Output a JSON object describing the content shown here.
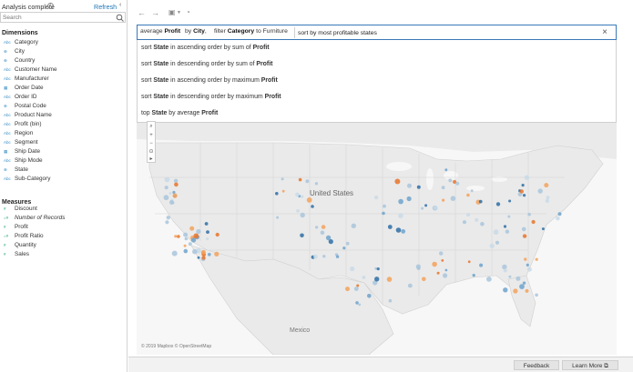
{
  "pane": {
    "status": "Analysis complete",
    "refresh": "Refresh",
    "search_placeholder": "Search",
    "dimensions_title": "Dimensions",
    "measures_title": "Measures",
    "dimensions": [
      {
        "label": "Category",
        "type": "Abc"
      },
      {
        "label": "City",
        "type": "geo"
      },
      {
        "label": "Country",
        "type": "geo"
      },
      {
        "label": "Customer Name",
        "type": "Abc"
      },
      {
        "label": "Manufacturer",
        "type": "Abc"
      },
      {
        "label": "Order Date",
        "type": "date"
      },
      {
        "label": "Order ID",
        "type": "Abc"
      },
      {
        "label": "Postal Code",
        "type": "geo"
      },
      {
        "label": "Product Name",
        "type": "Abc"
      },
      {
        "label": "Profit (bin)",
        "type": "Abc"
      },
      {
        "label": "Region",
        "type": "Abc"
      },
      {
        "label": "Segment",
        "type": "Abc"
      },
      {
        "label": "Ship Date",
        "type": "date"
      },
      {
        "label": "Ship Mode",
        "type": "Abc"
      },
      {
        "label": "State",
        "type": "geo"
      },
      {
        "label": "Sub-Category",
        "type": "Abc"
      }
    ],
    "measures": [
      {
        "label": "Discount",
        "type": "#"
      },
      {
        "label": "Number of Records",
        "type": "=#",
        "italic": true
      },
      {
        "label": "Profit",
        "type": "#"
      },
      {
        "label": "Profit Ratio",
        "type": "=#"
      },
      {
        "label": "Quantity",
        "type": "#"
      },
      {
        "label": "Sales",
        "type": "#"
      }
    ]
  },
  "query": {
    "pill1": {
      "prefix": "average",
      "bold": "Profit"
    },
    "pill2": {
      "prefix": "by",
      "bold": "City"
    },
    "pill3": {
      "prefix": "filter",
      "bold": "Category",
      "suffix": "to Furniture"
    },
    "input_value": "sort by most profitable states"
  },
  "suggestions": [
    {
      "parts": [
        [
          "sort ",
          false
        ],
        [
          "State",
          true
        ],
        [
          " in ascending order by sum of ",
          false
        ],
        [
          "Profit",
          true
        ]
      ]
    },
    {
      "parts": [
        [
          "sort ",
          false
        ],
        [
          "State",
          true
        ],
        [
          " in descending order by sum of ",
          false
        ],
        [
          "Profit",
          true
        ]
      ]
    },
    {
      "parts": [
        [
          "sort ",
          false
        ],
        [
          "State",
          true
        ],
        [
          " in ascending order by maximum ",
          false
        ],
        [
          "Profit",
          true
        ]
      ]
    },
    {
      "parts": [
        [
          "sort ",
          false
        ],
        [
          "State",
          true
        ],
        [
          " in descending order by maximum ",
          false
        ],
        [
          "Profit",
          true
        ]
      ]
    },
    {
      "parts": [
        [
          "top ",
          false
        ],
        [
          "State",
          true
        ],
        [
          " by average ",
          false
        ],
        [
          "Profit",
          true
        ]
      ]
    }
  ],
  "map": {
    "labels": {
      "us": "United States",
      "mexico": "Mexico"
    },
    "attribution": "© 2019 Mapbox © OpenStreetMap",
    "colors": {
      "land": "#eaeaea",
      "water": "#f7f7f7",
      "border": "#cfcfcf",
      "negative": "#e8742a",
      "positive": "#2f6ea6",
      "neutral": "#a9c6dc"
    }
  },
  "footer": {
    "feedback": "Feedback",
    "learn_more": "Learn More ⧉"
  }
}
